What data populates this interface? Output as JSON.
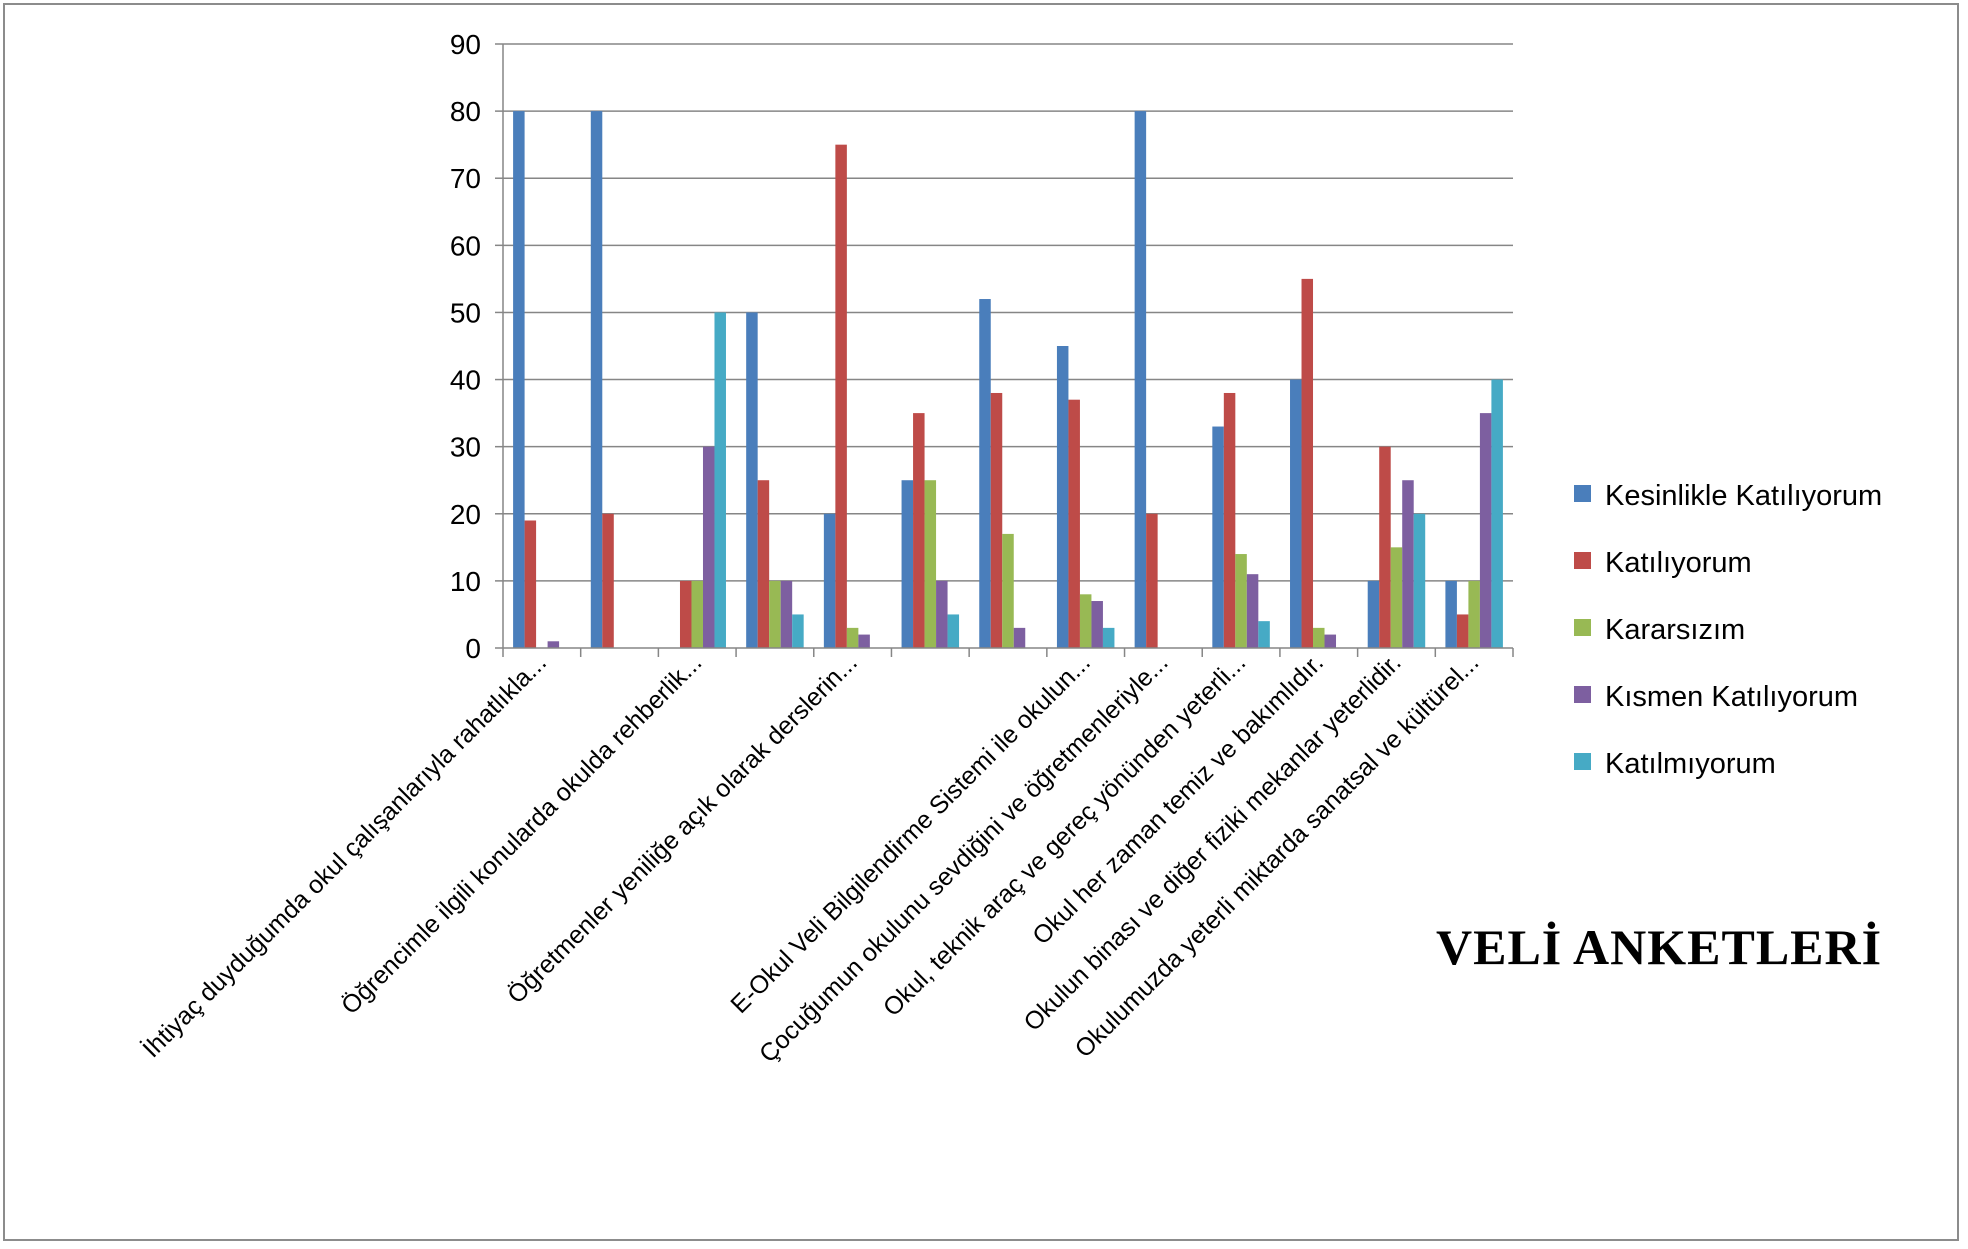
{
  "title": "VELİ  ANKETLERİ",
  "chart_data": {
    "type": "bar",
    "title": "VELİ  ANKETLERİ",
    "xlabel": "",
    "ylabel": "",
    "ylim": [
      0,
      90
    ],
    "yticks": [
      0,
      10,
      20,
      30,
      40,
      50,
      60,
      70,
      80,
      90
    ],
    "grid": true,
    "legend_position": "right",
    "categories": [
      "İhtiyaç duyduğumda okul çalışanlarıyla rahatlıkla...",
      "",
      "Öğrencimle ilgili konularda okulda rehberlik...",
      "",
      "Öğretmenler yeniliğe açık olarak derslerin...",
      "",
      "",
      "E-Okul Veli Bilgilendirme Sistemi ile okulun...",
      "Çocuğumun okulunu sevdiğini ve öğretmenleriyle...",
      "Okul, teknik araç ve gereç yönünden yeterli...",
      "Okul her zaman temiz ve bakımlıdır.",
      "Okulun binası ve diğer fiziki mekanlar yeterlidir.",
      "Okulumuzda yeterli miktarda sanatsal ve kültürel..."
    ],
    "series": [
      {
        "name": "Kesinlikle Katılıyorum",
        "color": "#4a7ebb",
        "values": [
          80,
          80,
          0,
          50,
          20,
          25,
          52,
          45,
          80,
          33,
          40,
          10,
          10
        ]
      },
      {
        "name": "Katılıyorum",
        "color": "#be4b48",
        "values": [
          19,
          20,
          10,
          25,
          75,
          35,
          38,
          37,
          20,
          38,
          55,
          30,
          5
        ]
      },
      {
        "name": "Kararsızım",
        "color": "#98b954",
        "values": [
          0,
          0,
          10,
          10,
          3,
          25,
          17,
          8,
          0,
          14,
          3,
          15,
          10
        ]
      },
      {
        "name": "Kısmen Katılıyorum",
        "color": "#7d5fa0",
        "values": [
          1,
          0,
          30,
          10,
          2,
          10,
          3,
          7,
          0,
          11,
          2,
          25,
          35
        ]
      },
      {
        "name": "Katılmıyorum",
        "color": "#46aac5",
        "values": [
          0,
          0,
          50,
          5,
          0,
          5,
          0,
          3,
          0,
          4,
          0,
          20,
          40
        ]
      }
    ]
  }
}
